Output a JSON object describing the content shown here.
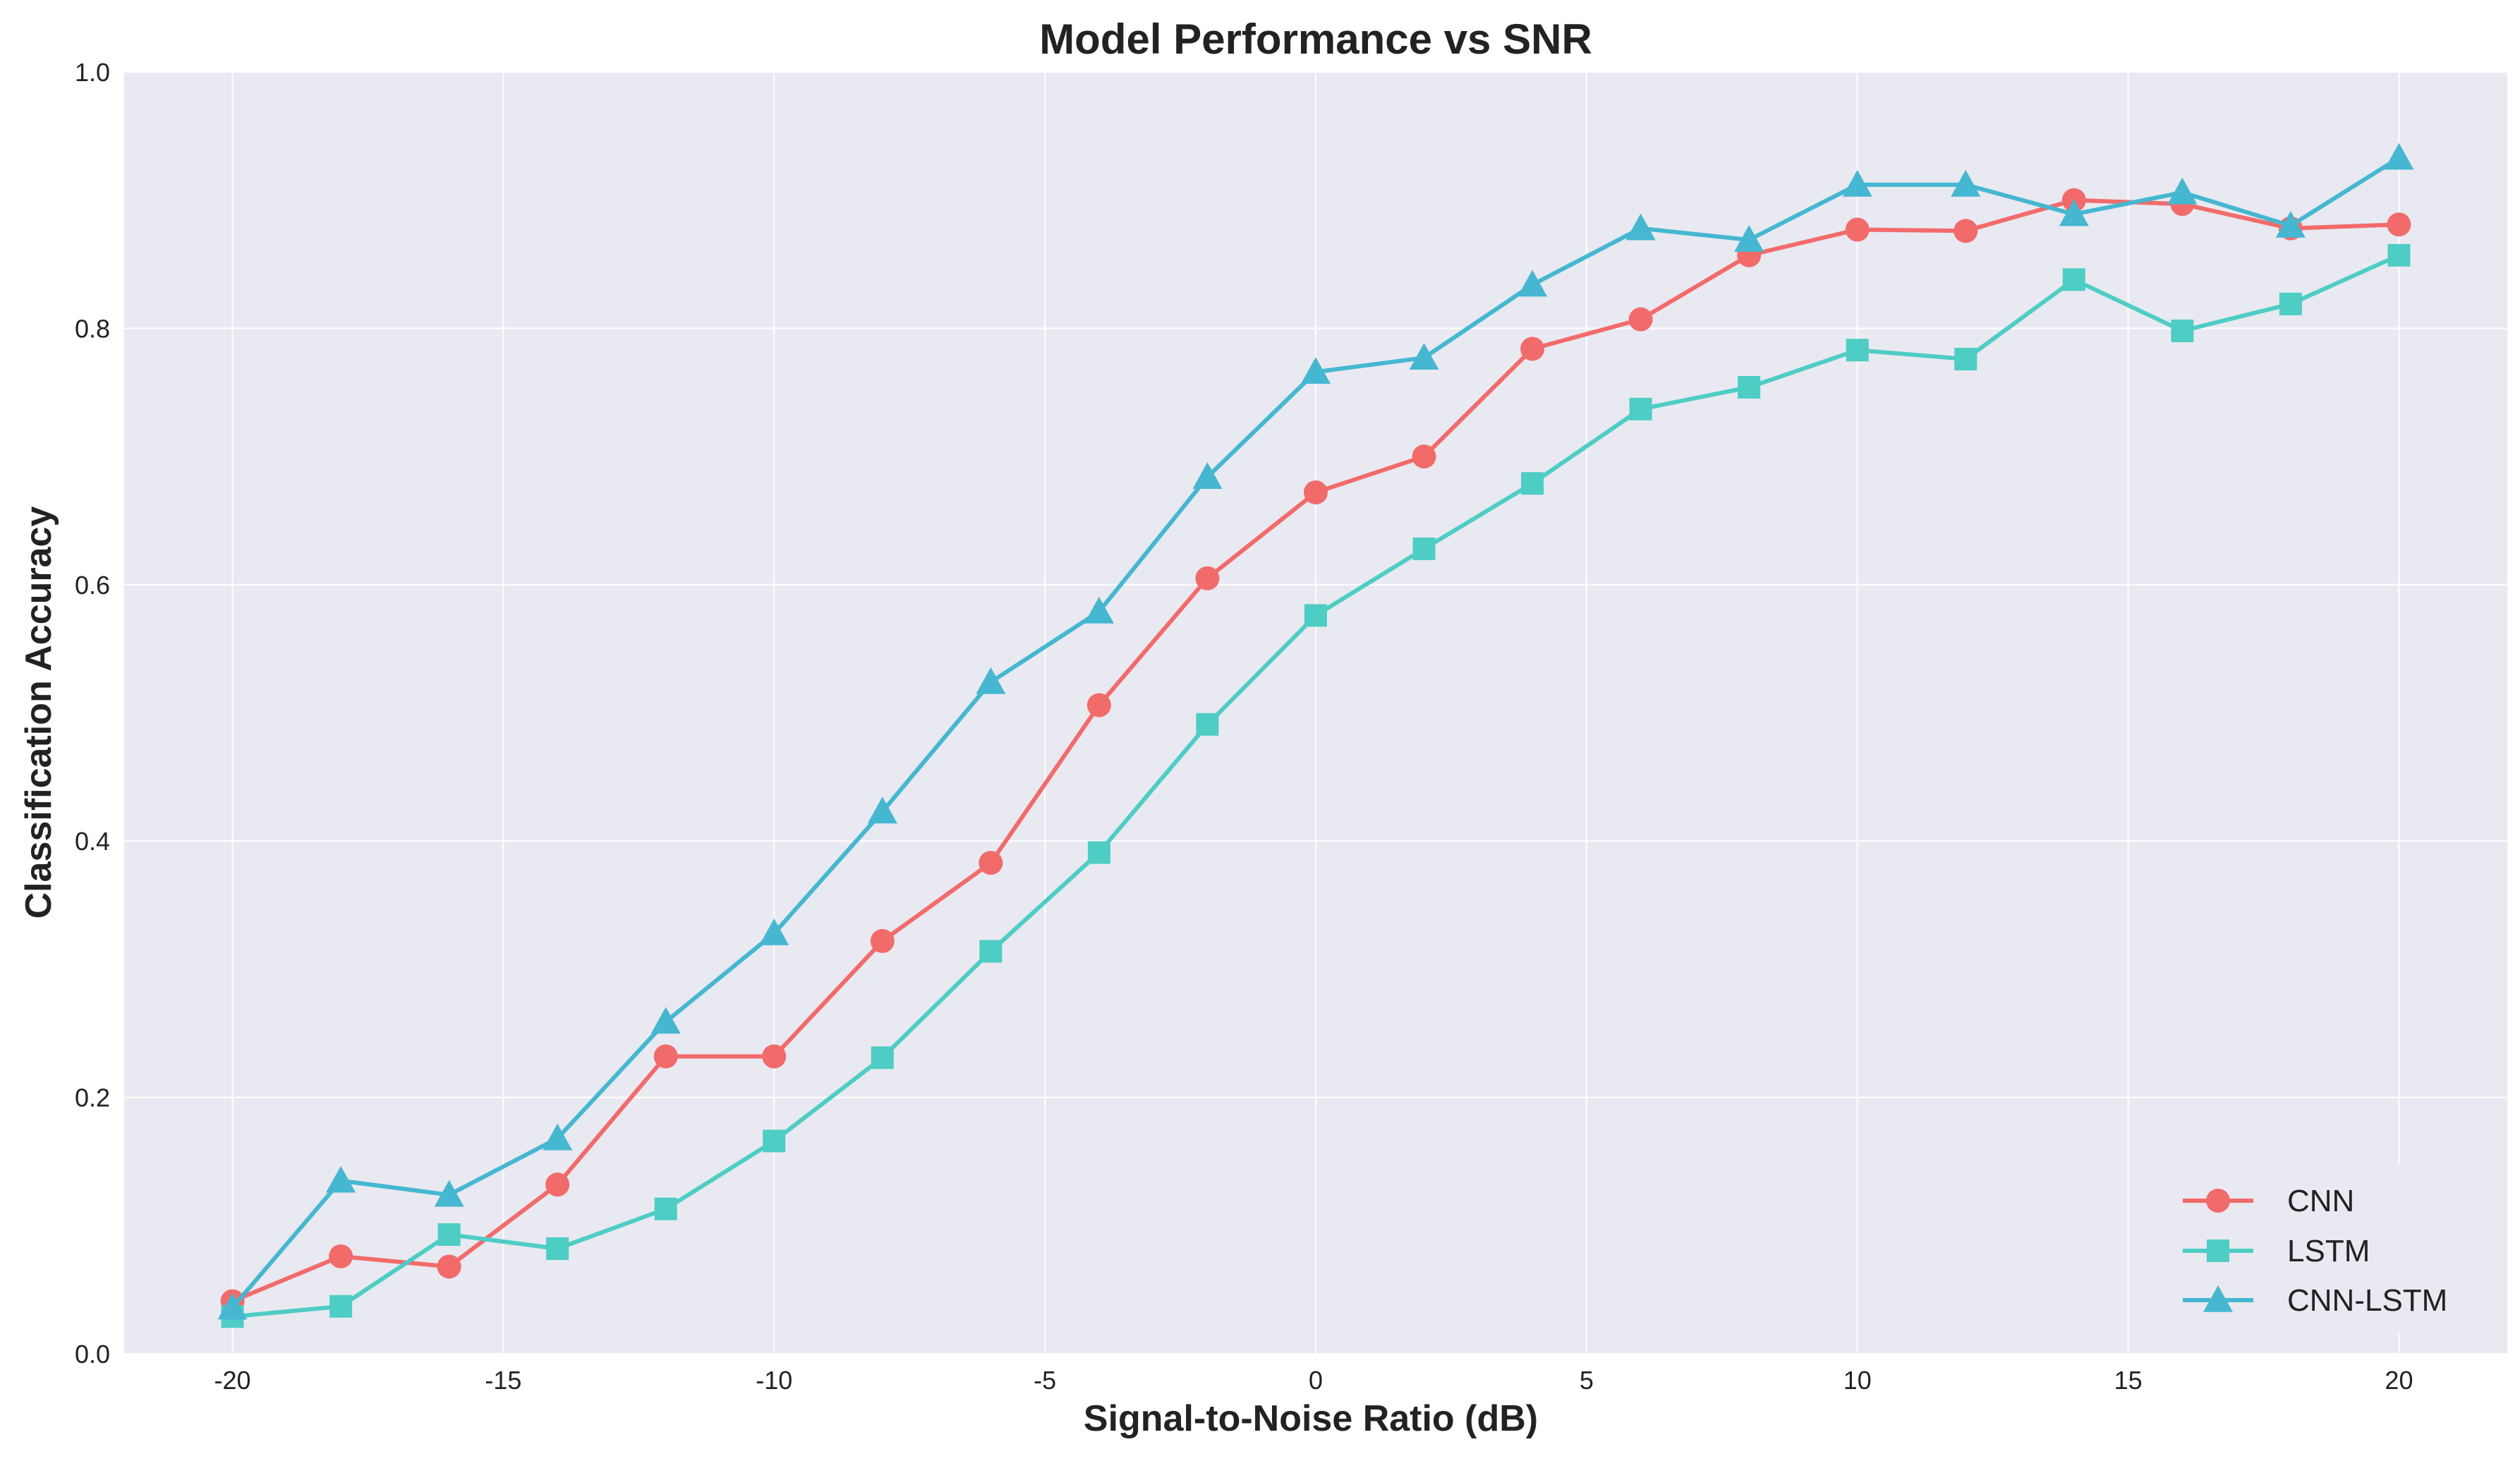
{
  "chart_data": {
    "type": "line",
    "title": "Model Performance vs SNR",
    "xlabel": "Signal-to-Noise Ratio (dB)",
    "ylabel": "Classification Accuracy",
    "x": [
      -20,
      -18,
      -16,
      -14,
      -12,
      -10,
      -8,
      -6,
      -4,
      -2,
      0,
      2,
      4,
      6,
      8,
      10,
      12,
      14,
      16,
      18,
      20
    ],
    "xlim": [
      -22,
      22
    ],
    "ylim": [
      0.0,
      1.0
    ],
    "xticks": [
      -20,
      -15,
      -10,
      -5,
      0,
      5,
      10,
      15,
      20
    ],
    "xtick_labels": [
      "-20",
      "-15",
      "-10",
      "-5",
      "0",
      "5",
      "10",
      "15",
      "20"
    ],
    "yticks": [
      0.0,
      0.2,
      0.4,
      0.6,
      0.8,
      1.0
    ],
    "ytick_labels": [
      "0.0",
      "0.2",
      "0.4",
      "0.6",
      "0.8",
      "1.0"
    ],
    "grid": true,
    "legend_position": "bottom-right",
    "series": [
      {
        "name": "CNN",
        "color": "#f26b6b",
        "marker": "circle",
        "values": [
          0.041,
          0.076,
          0.068,
          0.132,
          0.232,
          0.232,
          0.322,
          0.383,
          0.506,
          0.605,
          0.672,
          0.7,
          0.784,
          0.807,
          0.857,
          0.877,
          0.876,
          0.9,
          0.897,
          0.878,
          0.881
        ]
      },
      {
        "name": "LSTM",
        "color": "#4ecdc4",
        "marker": "square",
        "values": [
          0.029,
          0.037,
          0.093,
          0.082,
          0.113,
          0.166,
          0.231,
          0.314,
          0.391,
          0.491,
          0.576,
          0.628,
          0.679,
          0.737,
          0.754,
          0.783,
          0.776,
          0.838,
          0.798,
          0.819,
          0.857
        ]
      },
      {
        "name": "CNN-LSTM",
        "color": "#45b7d1",
        "marker": "triangle",
        "values": [
          0.036,
          0.135,
          0.124,
          0.168,
          0.259,
          0.328,
          0.423,
          0.524,
          0.579,
          0.684,
          0.766,
          0.777,
          0.834,
          0.878,
          0.869,
          0.912,
          0.912,
          0.889,
          0.906,
          0.88,
          0.933
        ]
      }
    ]
  }
}
